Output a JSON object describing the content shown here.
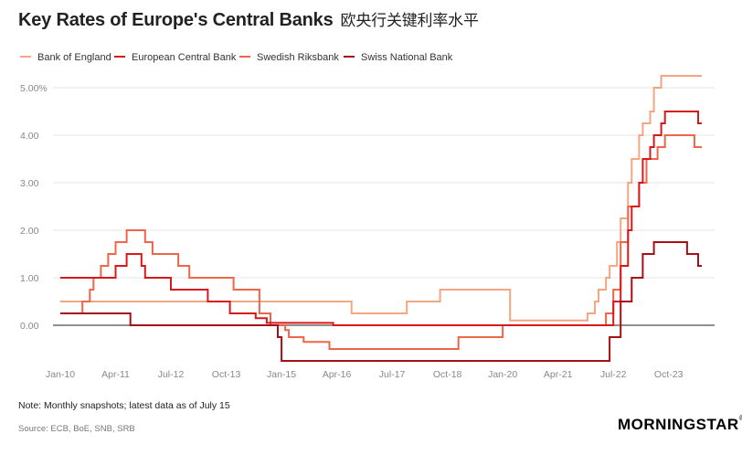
{
  "title": "Key Rates of Europe's Central Banks",
  "title_zh": "欧央行关键利率水平",
  "note": "Note: Monthly snapshots; latest data as of July 15",
  "source": "Source: ECB, BoE, SNB, SRB",
  "logo": "MORNINGSTAR",
  "logo_mark": "®",
  "chart_data": {
    "type": "line",
    "title": "Key Rates of Europe's Central Banks",
    "xlabel": "",
    "ylabel": "",
    "x_start": "2010-01",
    "x_end": "2024-07",
    "ylim": [
      -0.75,
      5.5
    ],
    "y_ticks": [
      0,
      1,
      2,
      3,
      4,
      5
    ],
    "y_tick_labels": [
      "0.00",
      "1.00",
      "2.00",
      "3.00",
      "4.00",
      "5.00%"
    ],
    "x_ticks": [
      "2010-01",
      "2011-04",
      "2012-07",
      "2013-10",
      "2015-01",
      "2016-04",
      "2017-07",
      "2018-10",
      "2020-01",
      "2021-04",
      "2022-07",
      "2023-10"
    ],
    "x_tick_labels": [
      "Jan-10",
      "Apr-11",
      "Jul-12",
      "Oct-13",
      "Jan-15",
      "Apr-16",
      "Jul-17",
      "Oct-18",
      "Jan-20",
      "Apr-21",
      "Jul-22",
      "Oct-23"
    ],
    "grid": true,
    "legend_position": "top-left",
    "series": [
      {
        "name": "Bank of England",
        "color": "#f4a582",
        "points": [
          [
            "2010-01",
            0.5
          ],
          [
            "2016-08",
            0.25
          ],
          [
            "2017-11",
            0.5
          ],
          [
            "2018-08",
            0.75
          ],
          [
            "2020-03",
            0.1
          ],
          [
            "2021-12",
            0.25
          ],
          [
            "2022-02",
            0.5
          ],
          [
            "2022-03",
            0.75
          ],
          [
            "2022-05",
            1.0
          ],
          [
            "2022-06",
            1.25
          ],
          [
            "2022-08",
            1.75
          ],
          [
            "2022-09",
            2.25
          ],
          [
            "2022-11",
            3.0
          ],
          [
            "2022-12",
            3.5
          ],
          [
            "2023-02",
            4.0
          ],
          [
            "2023-03",
            4.25
          ],
          [
            "2023-05",
            4.5
          ],
          [
            "2023-06",
            5.0
          ],
          [
            "2023-08",
            5.25
          ],
          [
            "2024-07",
            5.25
          ]
        ]
      },
      {
        "name": "European Central Bank",
        "color": "#d7191c",
        "points": [
          [
            "2010-01",
            1.0
          ],
          [
            "2011-04",
            1.25
          ],
          [
            "2011-07",
            1.5
          ],
          [
            "2011-11",
            1.25
          ],
          [
            "2011-12",
            1.0
          ],
          [
            "2012-07",
            0.75
          ],
          [
            "2013-05",
            0.5
          ],
          [
            "2013-11",
            0.25
          ],
          [
            "2014-06",
            0.15
          ],
          [
            "2014-09",
            0.05
          ],
          [
            "2016-03",
            0.0
          ],
          [
            "2022-07",
            0.5
          ],
          [
            "2022-09",
            1.25
          ],
          [
            "2022-11",
            2.0
          ],
          [
            "2022-12",
            2.5
          ],
          [
            "2023-02",
            3.0
          ],
          [
            "2023-03",
            3.5
          ],
          [
            "2023-05",
            3.75
          ],
          [
            "2023-06",
            4.0
          ],
          [
            "2023-08",
            4.25
          ],
          [
            "2023-09",
            4.5
          ],
          [
            "2024-06",
            4.25
          ],
          [
            "2024-07",
            4.25
          ]
        ]
      },
      {
        "name": "Swedish Riksbank",
        "color": "#ef6548",
        "points": [
          [
            "2010-01",
            0.25
          ],
          [
            "2010-07",
            0.5
          ],
          [
            "2010-09",
            0.75
          ],
          [
            "2010-10",
            1.0
          ],
          [
            "2010-12",
            1.25
          ],
          [
            "2011-02",
            1.5
          ],
          [
            "2011-04",
            1.75
          ],
          [
            "2011-07",
            2.0
          ],
          [
            "2011-12",
            1.75
          ],
          [
            "2012-02",
            1.5
          ],
          [
            "2012-09",
            1.25
          ],
          [
            "2012-12",
            1.0
          ],
          [
            "2013-12",
            0.75
          ],
          [
            "2014-07",
            0.25
          ],
          [
            "2014-10",
            0.0
          ],
          [
            "2015-02",
            -0.1
          ],
          [
            "2015-03",
            -0.25
          ],
          [
            "2015-07",
            -0.35
          ],
          [
            "2016-02",
            -0.5
          ],
          [
            "2019-01",
            -0.25
          ],
          [
            "2020-01",
            0.0
          ],
          [
            "2022-05",
            0.25
          ],
          [
            "2022-07",
            0.75
          ],
          [
            "2022-09",
            1.75
          ],
          [
            "2022-11",
            2.5
          ],
          [
            "2023-02",
            3.0
          ],
          [
            "2023-04",
            3.5
          ],
          [
            "2023-07",
            3.75
          ],
          [
            "2023-09",
            4.0
          ],
          [
            "2024-05",
            3.75
          ],
          [
            "2024-07",
            3.75
          ]
        ]
      },
      {
        "name": "Swiss National Bank",
        "color": "#a50f15",
        "points": [
          [
            "2010-01",
            0.25
          ],
          [
            "2011-08",
            0.0
          ],
          [
            "2014-12",
            -0.25
          ],
          [
            "2015-01",
            -0.75
          ],
          [
            "2022-06",
            -0.25
          ],
          [
            "2022-09",
            0.5
          ],
          [
            "2022-12",
            1.0
          ],
          [
            "2023-03",
            1.5
          ],
          [
            "2023-06",
            1.75
          ],
          [
            "2024-03",
            1.5
          ],
          [
            "2024-06",
            1.25
          ],
          [
            "2024-07",
            1.25
          ]
        ]
      }
    ]
  }
}
